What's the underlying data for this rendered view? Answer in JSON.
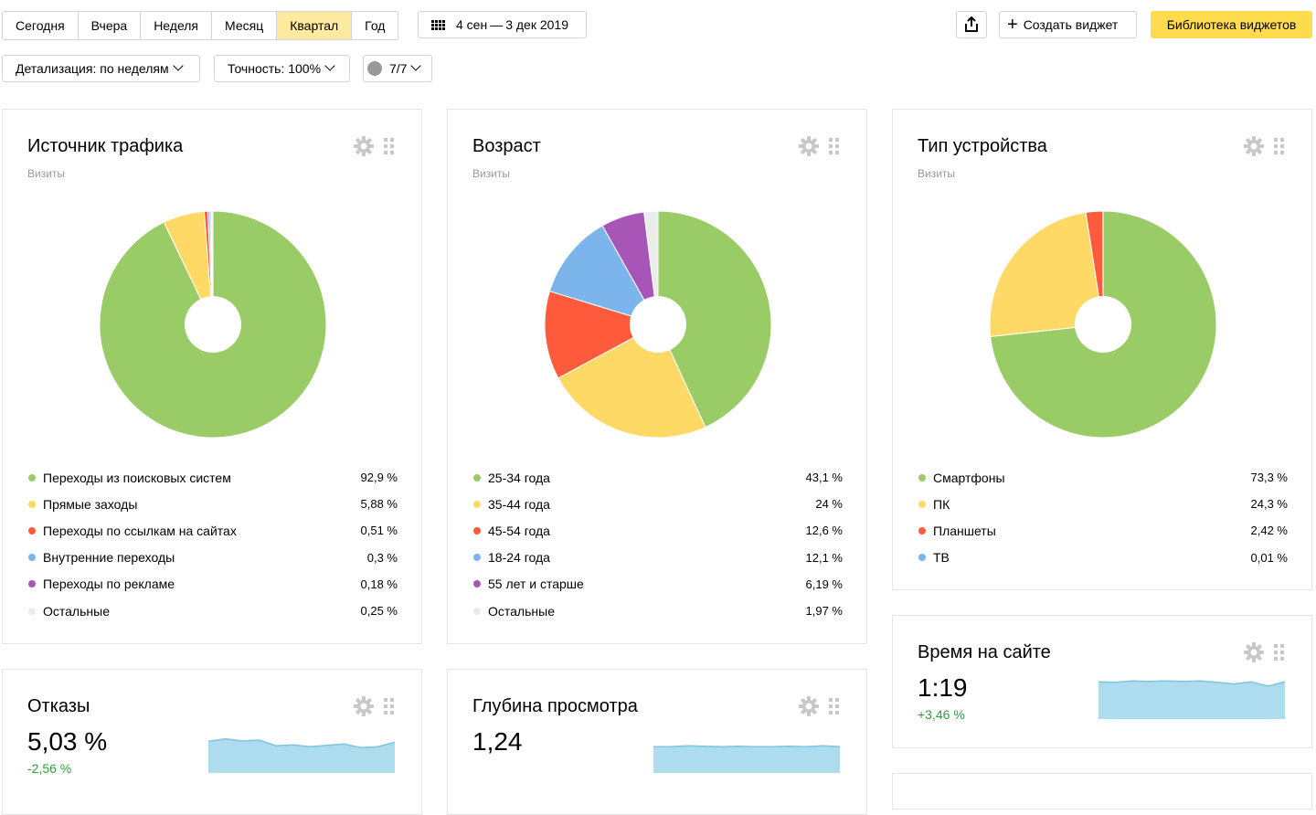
{
  "toolbar": {
    "periods": [
      {
        "label": "Сегодня"
      },
      {
        "label": "Вчера"
      },
      {
        "label": "Неделя"
      },
      {
        "label": "Месяц"
      },
      {
        "label": "Квартал",
        "active": true
      },
      {
        "label": "Год"
      }
    ],
    "date_from": "4 сен",
    "date_sep": "—",
    "date_to": "3 дек 2019",
    "create_widget_label": "Создать виджет",
    "library_label": "Библиотека виджетов",
    "detail_label": "Детализация: по неделям",
    "accuracy_label": "Точность: 100%",
    "segments_label": "7/7",
    "accent_color": "#ffdb4d",
    "active_period_color": "#ffeba0"
  },
  "widgets": {
    "traffic": {
      "title": "Источник трафика",
      "subtitle": "Визиты",
      "items": [
        {
          "label": "Переходы из поисковых систем",
          "value": "92,9 %",
          "share": 92.9,
          "color": "#99cc66"
        },
        {
          "label": "Прямые заходы",
          "value": "5,88 %",
          "share": 5.88,
          "color": "#ffd966"
        },
        {
          "label": "Переходы по ссылкам на сайтах",
          "value": "0,51 %",
          "share": 0.51,
          "color": "#ff5a3c"
        },
        {
          "label": "Внутренние переходы",
          "value": "0,3 %",
          "share": 0.3,
          "color": "#7cb5ec"
        },
        {
          "label": "Переходы по рекламе",
          "value": "0,18 %",
          "share": 0.18,
          "color": "#a855b8"
        },
        {
          "label": "Остальные",
          "value": "0,25 %",
          "share": 0.25,
          "color": "#ebebeb"
        }
      ]
    },
    "age": {
      "title": "Возраст",
      "subtitle": "Визиты",
      "items": [
        {
          "label": "25-34 года",
          "value": "43,1 %",
          "share": 43.1,
          "color": "#99cc66"
        },
        {
          "label": "35-44 года",
          "value": "24 %",
          "share": 24,
          "color": "#ffd966"
        },
        {
          "label": "45-54 года",
          "value": "12,6 %",
          "share": 12.6,
          "color": "#ff5a3c"
        },
        {
          "label": "18-24 года",
          "value": "12,1 %",
          "share": 12.1,
          "color": "#7cb5ec"
        },
        {
          "label": "55 лет и старше",
          "value": "6,19 %",
          "share": 6.19,
          "color": "#a855b8"
        },
        {
          "label": "Остальные",
          "value": "1,97 %",
          "share": 1.97,
          "color": "#ebebeb"
        }
      ]
    },
    "device": {
      "title": "Тип устройства",
      "subtitle": "Визиты",
      "items": [
        {
          "label": "Смартфоны",
          "value": "73,3 %",
          "share": 73.3,
          "color": "#99cc66"
        },
        {
          "label": "ПК",
          "value": "24,3 %",
          "share": 24.3,
          "color": "#ffd966"
        },
        {
          "label": "Планшеты",
          "value": "2,42 %",
          "share": 2.42,
          "color": "#ff5a3c"
        },
        {
          "label": "ТВ",
          "value": "0,01 %",
          "share": 0.01,
          "color": "#7cb5ec"
        }
      ]
    },
    "bounce": {
      "title": "Отказы",
      "value": "5,03 %",
      "delta": "-2,56 %",
      "delta_color": "#2d9d3a",
      "trend": [
        0.72,
        0.78,
        0.73,
        0.75,
        0.62,
        0.64,
        0.6,
        0.63,
        0.66,
        0.58,
        0.6,
        0.7
      ]
    },
    "depth": {
      "title": "Глубина просмотра",
      "value": "1,24",
      "trend": [
        0.6,
        0.6,
        0.62,
        0.61,
        0.6,
        0.61,
        0.6,
        0.6,
        0.61,
        0.6,
        0.62,
        0.6
      ]
    },
    "time": {
      "title": "Время на сайте",
      "value": "1:19",
      "delta": "+3,46 %",
      "delta_color": "#2d9d3a",
      "trend": [
        0.85,
        0.84,
        0.87,
        0.86,
        0.87,
        0.86,
        0.87,
        0.84,
        0.8,
        0.85,
        0.75,
        0.85
      ]
    }
  }
}
